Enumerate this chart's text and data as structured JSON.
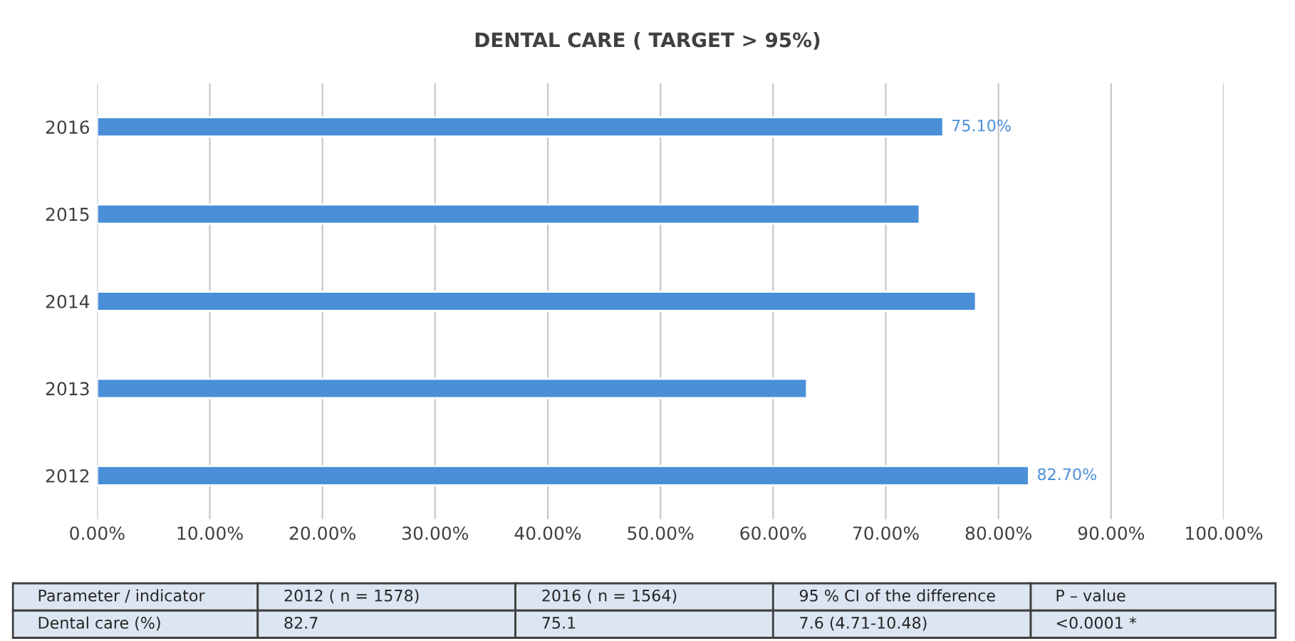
{
  "chart_data": {
    "type": "bar",
    "orientation": "horizontal",
    "title": "DENTAL CARE ( TARGET > 95%)",
    "categories": [
      "2016",
      "2015",
      "2014",
      "2013",
      "2012"
    ],
    "values": [
      75.1,
      73,
      78,
      63,
      82.7
    ],
    "value_labels": [
      "75.10%",
      null,
      null,
      null,
      "82.70%"
    ],
    "color": "#4a8fd8",
    "xlim": [
      0,
      100
    ],
    "xticks": [
      {
        "value": 0,
        "label": "0.00%"
      },
      {
        "value": 10,
        "label": "10.00%"
      },
      {
        "value": 20,
        "label": "20.00%"
      },
      {
        "value": 30,
        "label": "30.00%"
      },
      {
        "value": 40,
        "label": "40.00%"
      },
      {
        "value": 50,
        "label": "50.00%"
      },
      {
        "value": 60,
        "label": "60.00%"
      },
      {
        "value": 70,
        "label": "70.00%"
      },
      {
        "value": 80,
        "label": "80.00%"
      },
      {
        "value": 90,
        "label": "90.00%"
      },
      {
        "value": 100,
        "label": "100.00%"
      }
    ],
    "grid": "x",
    "annotations": [
      "Parameter / indicator",
      "2012 ( n = 1578)",
      "2016 ( n = 1564)",
      "95 % CI of the difference",
      "P – value",
      "Dental care (%)",
      "82.7",
      "75.1",
      "7.6 (4.71-10.48)",
      "<0.0001 *"
    ]
  }
}
